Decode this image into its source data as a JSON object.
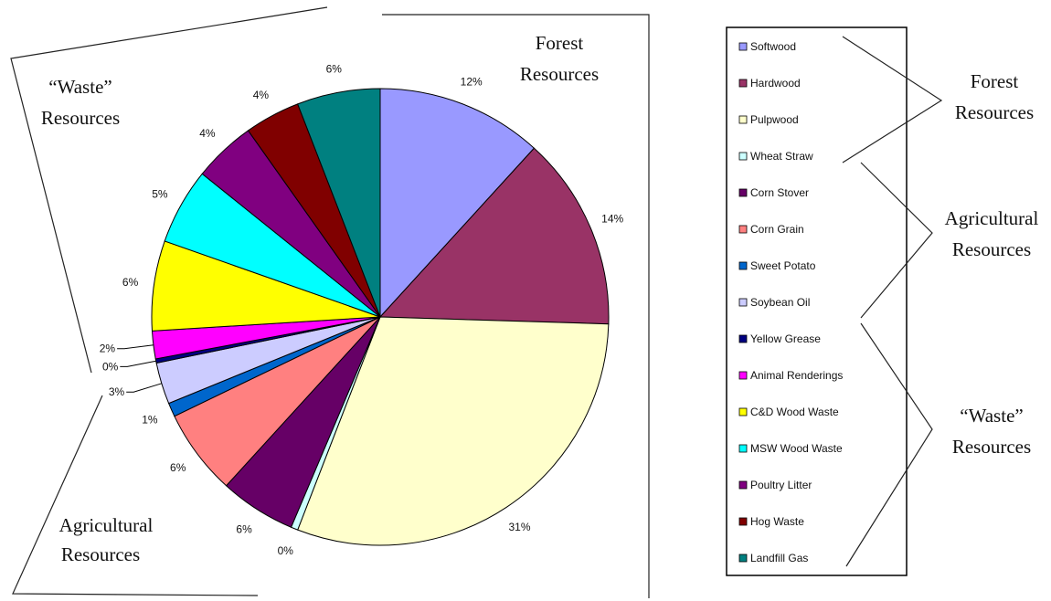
{
  "chart_data": {
    "type": "pie",
    "title": "",
    "start_angle_deg": 0,
    "direction": "clockwise",
    "slices": [
      {
        "label": "Softwood",
        "value": 12,
        "value_label": "12%",
        "color": "#9999ff"
      },
      {
        "label": "Hardwood",
        "value": 14,
        "value_label": "14%",
        "color": "#993366"
      },
      {
        "label": "Pulpwood",
        "value": 31,
        "value_label": "31%",
        "color": "#ffffcc"
      },
      {
        "label": "Wheat Straw",
        "value": 0.5,
        "value_label": "0%",
        "color": "#ccffff"
      },
      {
        "label": "Corn Stover",
        "value": 5.5,
        "value_label": "6%",
        "color": "#660066"
      },
      {
        "label": "Corn Grain",
        "value": 6.2,
        "value_label": "6%",
        "color": "#ff8080"
      },
      {
        "label": "Sweet Potato",
        "value": 1,
        "value_label": "1%",
        "color": "#0066cc"
      },
      {
        "label": "Soybean Oil",
        "value": 3,
        "value_label": "3%",
        "color": "#ccccff"
      },
      {
        "label": "Yellow Grease",
        "value": 0.3,
        "value_label": "0%",
        "color": "#000080"
      },
      {
        "label": "Animal Renderings",
        "value": 2,
        "value_label": "2%",
        "color": "#ff00ff"
      },
      {
        "label": "C&D Wood Waste",
        "value": 6.5,
        "value_label": "6%",
        "color": "#ffff00"
      },
      {
        "label": "MSW Wood Waste",
        "value": 5.5,
        "value_label": "5%",
        "color": "#00ffff"
      },
      {
        "label": "Poultry Litter",
        "value": 4.5,
        "value_label": "4%",
        "color": "#800080"
      },
      {
        "label": "Hog Waste",
        "value": 4,
        "value_label": "4%",
        "color": "#800000"
      },
      {
        "label": "Landfill Gas",
        "value": 6,
        "value_label": "6%",
        "color": "#008080"
      }
    ],
    "legend": {
      "position": "right",
      "items": [
        "Softwood",
        "Hardwood",
        "Pulpwood",
        "Wheat Straw",
        "Corn Stover",
        "Corn Grain",
        "Sweet Potato",
        "Soybean Oil",
        "Yellow Grease",
        "Animal Renderings",
        "C&D Wood Waste",
        "MSW Wood Waste",
        "Poultry Litter",
        "Hog Waste",
        "Landfill Gas"
      ]
    },
    "groups": [
      {
        "name": "forest",
        "line1": "Forest",
        "line2": "Resources",
        "members": [
          "Softwood",
          "Hardwood",
          "Pulpwood"
        ]
      },
      {
        "name": "agricultural",
        "line1": "Agricultural",
        "line2": "Resources",
        "members": [
          "Wheat Straw",
          "Corn Stover",
          "Corn Grain",
          "Sweet Potato",
          "Soybean Oil"
        ]
      },
      {
        "name": "waste",
        "line1": "“Waste”",
        "line2": "Resources",
        "members": [
          "Yellow Grease",
          "Animal Renderings",
          "C&D Wood Waste",
          "MSW Wood Waste",
          "Poultry Litter",
          "Hog Waste",
          "Landfill Gas"
        ]
      }
    ]
  }
}
